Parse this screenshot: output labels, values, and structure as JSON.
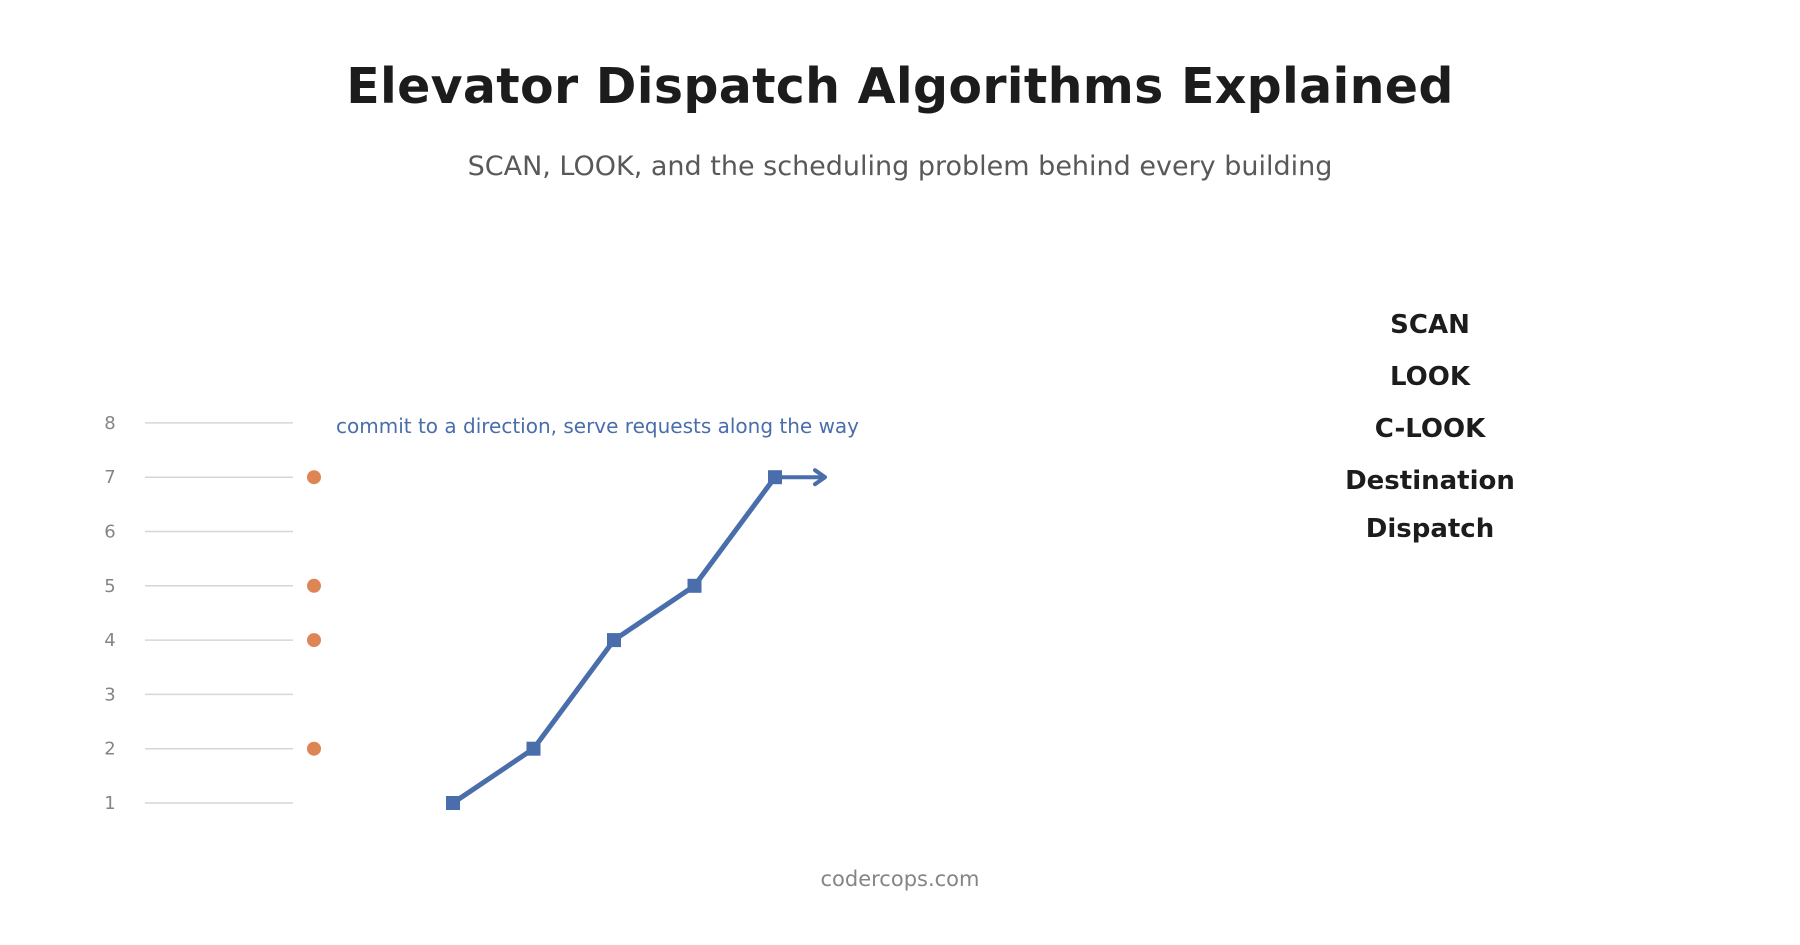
{
  "title": "Elevator Dispatch Algorithms Explained",
  "subtitle": "SCAN, LOOK, and the scheduling problem behind every building",
  "algorithms": [
    "SCAN",
    "LOOK",
    "C-LOOK",
    "Destination",
    "Dispatch"
  ],
  "footer": "codercops.com",
  "diagram": {
    "annotation": "commit to a direction, serve requests along the way",
    "floors": [
      1,
      2,
      3,
      4,
      5,
      6,
      7,
      8
    ],
    "requests": [
      2,
      4,
      5,
      7
    ],
    "path": [
      1,
      2,
      4,
      5,
      7
    ],
    "direction": "up",
    "colors": {
      "path": "#4a6eab",
      "request": "#de8556",
      "floor_line": "#d6d6d6",
      "floor_label": "#858585",
      "annotation": "#4a6eab"
    }
  }
}
